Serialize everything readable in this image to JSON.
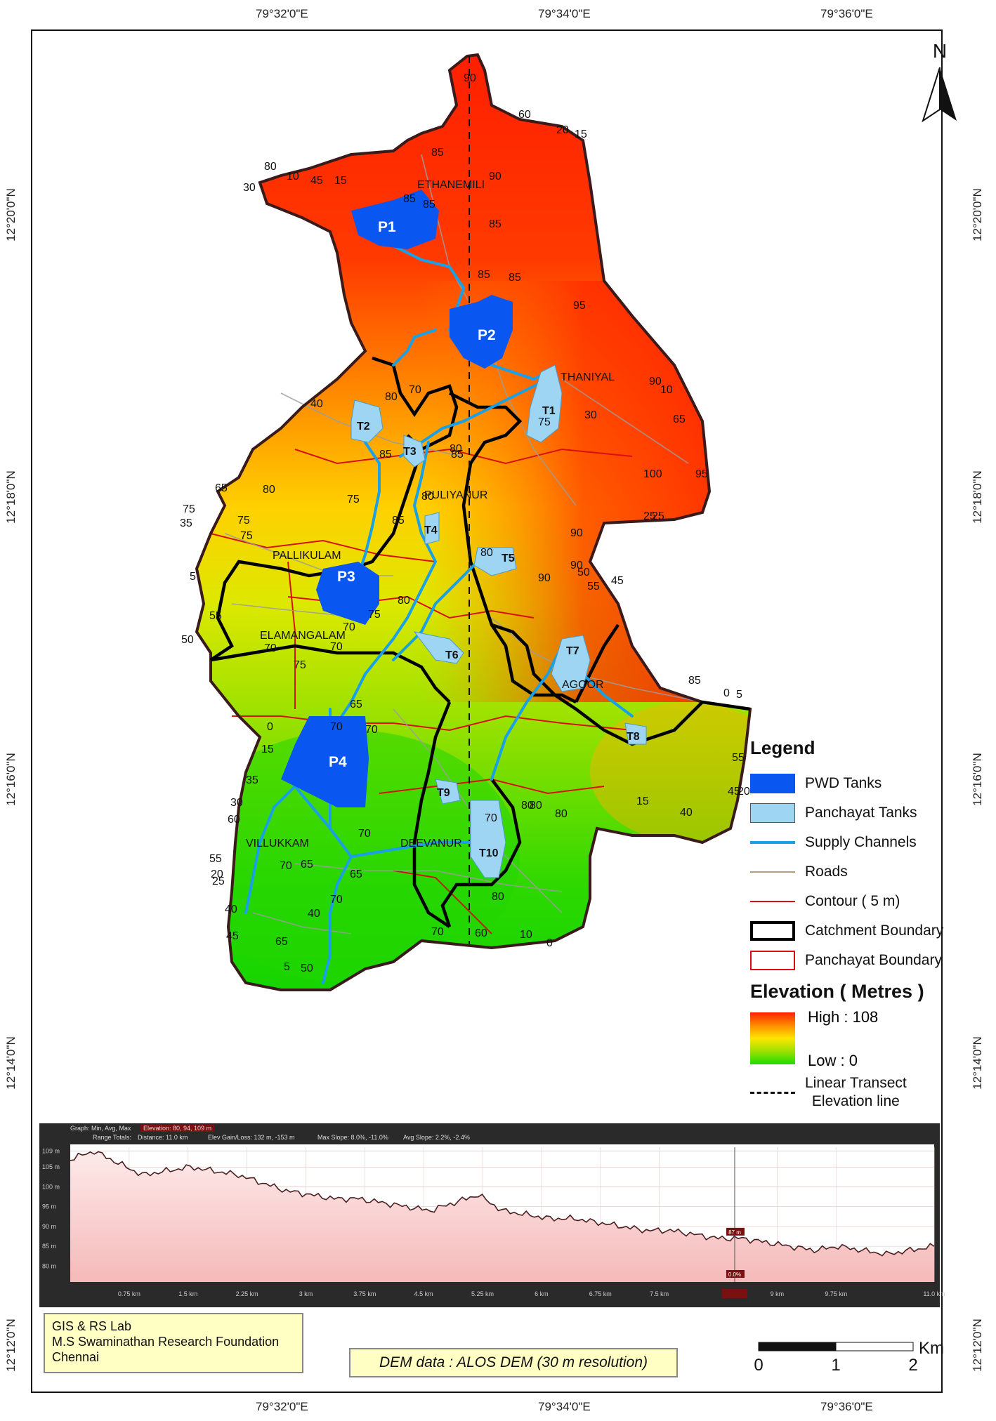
{
  "grid": {
    "longitudes": [
      "79°32'0\"E",
      "79°34'0\"E",
      "79°36'0\"E"
    ],
    "latitudes": [
      "12°20'0\"N",
      "12°18'0\"N",
      "12°16'0\"N",
      "12°14'0\"N",
      "12°12'0\"N"
    ]
  },
  "north_label": "N",
  "places": [
    "ETHANEMILI",
    "THANIYAL",
    "PULIYANUR",
    "PALLIKULAM",
    "ELAMANGALAM",
    "AGOOR",
    "VILLUKKAM",
    "DEEVANUR"
  ],
  "tanks": {
    "pwd": [
      "P1",
      "P2",
      "P3",
      "P4"
    ],
    "panchayat": [
      "T1",
      "T2",
      "T3",
      "T4",
      "T5",
      "T6",
      "T7",
      "T8",
      "T9",
      "T10"
    ]
  },
  "contour_labels": [
    "90",
    "60",
    "20",
    "15",
    "80",
    "10",
    "45",
    "15",
    "30",
    "85",
    "85",
    "90",
    "85",
    "85",
    "85",
    "85",
    "95",
    "90",
    "10",
    "40",
    "80",
    "70",
    "65",
    "75",
    "35",
    "75",
    "80",
    "75",
    "5",
    "55",
    "50",
    "75",
    "70",
    "75",
    "70",
    "85",
    "70",
    "0",
    "15",
    "35",
    "30",
    "60",
    "70",
    "55",
    "20",
    "25",
    "40",
    "45",
    "65",
    "5",
    "50",
    "40",
    "65",
    "65",
    "70",
    "60",
    "10",
    "0",
    "70",
    "80",
    "80",
    "15",
    "40",
    "45",
    "20",
    "55",
    "70",
    "80",
    "80",
    "85",
    "0",
    "5",
    "95",
    "65",
    "100",
    "25",
    "90",
    "50",
    "55",
    "45",
    "90",
    "75",
    "30",
    "80",
    "90",
    "85",
    "80",
    "80",
    "85",
    "80",
    "75",
    "70",
    "65",
    "70",
    "70",
    "25"
  ],
  "legend": {
    "title": "Legend",
    "items": [
      {
        "label": "PWD Tanks",
        "color": "#0a56f0"
      },
      {
        "label": "Panchayat Tanks",
        "color": "#9dd5f2"
      },
      {
        "label": "Supply Channels",
        "color": "#1aa0e6"
      },
      {
        "label": "Roads",
        "color": "#b4a07a"
      },
      {
        "label": "Contour ( 5 m)",
        "color": "#d81010"
      },
      {
        "label": "Catchment Boundary",
        "color": "#000000"
      },
      {
        "label": "Panchayat Boundary",
        "color": "#d81010"
      }
    ],
    "elevation_title": "Elevation ( Metres )",
    "high": "High : 108",
    "low": "Low : 0",
    "transect": "Linear Transect\nElevation line"
  },
  "profile": {
    "header": {
      "graph": "Graph: Min, Avg, Max",
      "elevation": "Elevation: 80, 94, 109 m",
      "range_totals": "Range Totals:",
      "distance": "Distance: 11.0 km",
      "gain_loss": "Elev Gain/Loss: 132 m, -153 m",
      "max_slope": "Max Slope: 8.0%, -11.0%",
      "avg_slope": "Avg Slope: 2.2%, -2.4%"
    },
    "y_ticks": [
      "109 m",
      "105 m",
      "100 m",
      "95 m",
      "90 m",
      "85 m",
      "80 m"
    ],
    "x_ticks": [
      "0.75 km",
      "1.5 km",
      "2.25 km",
      "3 km",
      "3.75 km",
      "4.5 km",
      "5.25 km",
      "6 km",
      "6.75 km",
      "7.5 km",
      "8.46 km",
      "9 km",
      "9.75 km",
      "11.0 km"
    ],
    "marker_elev": "87 m",
    "marker_slope": "0.0%",
    "marker_dist": "8.46 km",
    "elevations_m": [
      107,
      109,
      106,
      103,
      104,
      105,
      104,
      103,
      101,
      99,
      98,
      97,
      97,
      96,
      95,
      94,
      96,
      98,
      94,
      93,
      92,
      92,
      91,
      90,
      89,
      89,
      88,
      87,
      87,
      86,
      85,
      84,
      85,
      84,
      83,
      84,
      85
    ],
    "distance_km": 11.0
  },
  "credit": {
    "line1": "GIS & RS Lab",
    "line2": "M.S Swaminathan Research Foundation",
    "line3": "Chennai"
  },
  "dem_note": "DEM data : ALOS DEM (30 m resolution)",
  "scale": {
    "unit": "Km",
    "labels": [
      "0",
      "1",
      "2"
    ]
  }
}
